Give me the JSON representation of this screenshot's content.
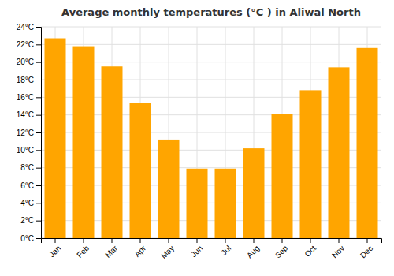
{
  "chart_data": {
    "type": "bar",
    "title": "Average monthly temperatures (°C ) in Aliwal North",
    "categories": [
      "Jan",
      "Feb",
      "Mar",
      "Apr",
      "May",
      "Jun",
      "Jul",
      "Aug",
      "Sep",
      "Oct",
      "Nov",
      "Dec"
    ],
    "values": [
      22.7,
      21.8,
      19.5,
      15.4,
      11.2,
      7.9,
      7.9,
      10.2,
      14.1,
      16.8,
      19.4,
      21.6
    ],
    "color": "#FFA500",
    "ylim": [
      0,
      24
    ],
    "yticks": [
      {
        "value": 0,
        "label": "0°C"
      },
      {
        "value": 2,
        "label": "2°C"
      },
      {
        "value": 4,
        "label": "4°C"
      },
      {
        "value": 6,
        "label": "6°C"
      },
      {
        "value": 8,
        "label": "8°C"
      },
      {
        "value": 10,
        "label": "10°C"
      },
      {
        "value": 12,
        "label": "12°C"
      },
      {
        "value": 14,
        "label": "14°C"
      },
      {
        "value": 16,
        "label": "16°C"
      },
      {
        "value": 18,
        "label": "18°C"
      },
      {
        "value": 20,
        "label": "20°C"
      },
      {
        "value": 22,
        "label": "22°C"
      },
      {
        "value": 24,
        "label": "24°C"
      }
    ],
    "grid": true
  }
}
